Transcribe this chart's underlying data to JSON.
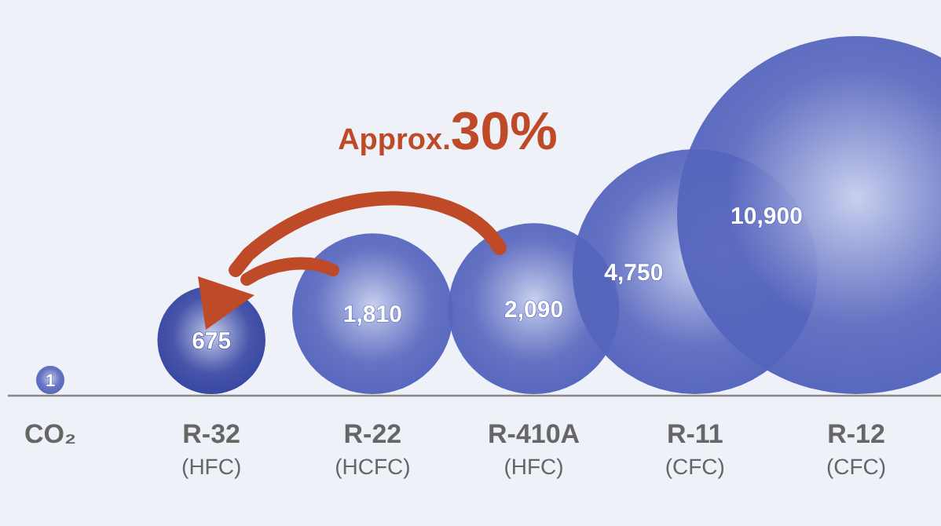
{
  "chart_data": {
    "type": "other",
    "categories": [
      "CO₂",
      "R-32\n(HFC)",
      "R-22\n(HCFC)",
      "R-410A\n(HFC)",
      "R-11\n(CFC)",
      "R-12\n(CFC)"
    ],
    "values": [
      1,
      675,
      1810,
      2090,
      4750,
      10900
    ],
    "value_labels": [
      "1",
      "675",
      "1,810",
      "2,090",
      "4,750",
      "10,900"
    ],
    "colors": [
      "#5565bd",
      "#3444a0",
      "#5565bd",
      "#5565bd",
      "#5565bd",
      "#5565bd"
    ],
    "annotations": [
      "Approx.30%"
    ]
  }
}
